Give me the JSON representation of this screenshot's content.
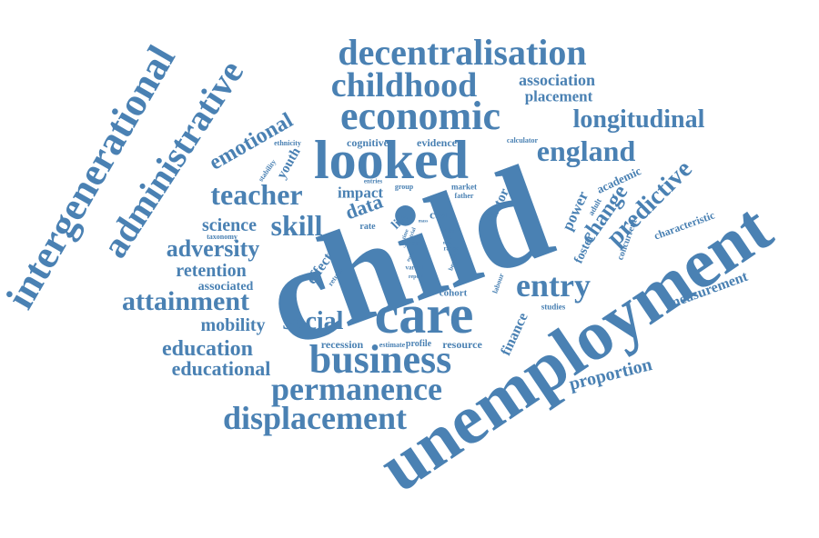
{
  "color": "#4a81b3",
  "words": [
    {
      "text": "child",
      "weight": 1.0
    },
    {
      "text": "unemployment",
      "weight": 0.72
    },
    {
      "text": "looked",
      "weight": 0.52
    },
    {
      "text": "care",
      "weight": 0.5
    },
    {
      "text": "intergenerational",
      "weight": 0.4
    },
    {
      "text": "administrative",
      "weight": 0.4
    },
    {
      "text": "economic",
      "weight": 0.38
    },
    {
      "text": "decentralisation",
      "weight": 0.36
    },
    {
      "text": "business",
      "weight": 0.36
    },
    {
      "text": "childhood",
      "weight": 0.32
    },
    {
      "text": "permanence",
      "weight": 0.31
    },
    {
      "text": "displacement",
      "weight": 0.3
    },
    {
      "text": "entry",
      "weight": 0.3
    },
    {
      "text": "teacher",
      "weight": 0.28
    },
    {
      "text": "england",
      "weight": 0.26
    },
    {
      "text": "skill",
      "weight": 0.26
    },
    {
      "text": "attainment",
      "weight": 0.26
    },
    {
      "text": "social",
      "weight": 0.26
    },
    {
      "text": "predictive",
      "weight": 0.26
    },
    {
      "text": "longitudinal",
      "weight": 0.24
    },
    {
      "text": "adversity",
      "weight": 0.24
    },
    {
      "text": "emotional",
      "weight": 0.22
    },
    {
      "text": "education",
      "weight": 0.22
    },
    {
      "text": "change",
      "weight": 0.22
    },
    {
      "text": "educational",
      "weight": 0.2
    },
    {
      "text": "science",
      "weight": 0.19
    },
    {
      "text": "retention",
      "weight": 0.19
    },
    {
      "text": "mobility",
      "weight": 0.19
    },
    {
      "text": "data",
      "weight": 0.19
    },
    {
      "text": "proportion",
      "weight": 0.18
    },
    {
      "text": "association",
      "weight": 0.17
    },
    {
      "text": "placement",
      "weight": 0.16
    },
    {
      "text": "impact",
      "weight": 0.16
    },
    {
      "text": "measurement",
      "weight": 0.16
    },
    {
      "text": "power",
      "weight": 0.16
    },
    {
      "text": "finance",
      "weight": 0.15
    },
    {
      "text": "effect",
      "weight": 0.15
    },
    {
      "text": "associated",
      "weight": 0.14
    },
    {
      "text": "foster",
      "weight": 0.14
    },
    {
      "text": "youth",
      "weight": 0.14
    },
    {
      "text": "factor",
      "weight": 0.14
    },
    {
      "text": "academic",
      "weight": 0.13
    },
    {
      "text": "cost",
      "weight": 0.13
    },
    {
      "text": "life",
      "weight": 0.13
    },
    {
      "text": "characteristic",
      "weight": 0.12
    },
    {
      "text": "resource",
      "weight": 0.12
    },
    {
      "text": "recession",
      "weight": 0.12
    },
    {
      "text": "cognitive",
      "weight": 0.12
    },
    {
      "text": "evidence",
      "weight": 0.12
    },
    {
      "text": "cohort",
      "weight": 0.11
    },
    {
      "text": "concurrent",
      "weight": 0.1
    },
    {
      "text": "profile",
      "weight": 0.1
    },
    {
      "text": "estimate",
      "weight": 0.09
    },
    {
      "text": "adult",
      "weight": 0.09
    },
    {
      "text": "market",
      "weight": 0.09
    },
    {
      "text": "studies",
      "weight": 0.09
    },
    {
      "text": "ethnicity",
      "weight": 0.08
    },
    {
      "text": "stability",
      "weight": 0.08
    },
    {
      "text": "calculator",
      "weight": 0.08
    },
    {
      "text": "rate",
      "weight": 0.09
    },
    {
      "text": "taxonomy",
      "weight": 0.08
    },
    {
      "text": "father",
      "weight": 0.08
    },
    {
      "text": "year",
      "weight": 0.08
    },
    {
      "text": "group",
      "weight": 0.08
    },
    {
      "text": "entries",
      "weight": 0.07
    },
    {
      "text": "labour",
      "weight": 0.07
    },
    {
      "text": "return",
      "weight": 0.07
    },
    {
      "text": "varied",
      "weight": 0.06
    },
    {
      "text": "report",
      "weight": 0.06
    },
    {
      "text": "range",
      "weight": 0.06
    },
    {
      "text": "benefit",
      "weight": 0.06
    },
    {
      "text": "white",
      "weight": 0.05
    },
    {
      "text": "loss",
      "weight": 0.05
    },
    {
      "text": "enter",
      "weight": 0.05
    },
    {
      "text": "time",
      "weight": 0.05
    },
    {
      "text": "trial",
      "weight": 0.05
    },
    {
      "text": "most",
      "weight": 0.05
    },
    {
      "text": "mass",
      "weight": 0.05
    }
  ]
}
